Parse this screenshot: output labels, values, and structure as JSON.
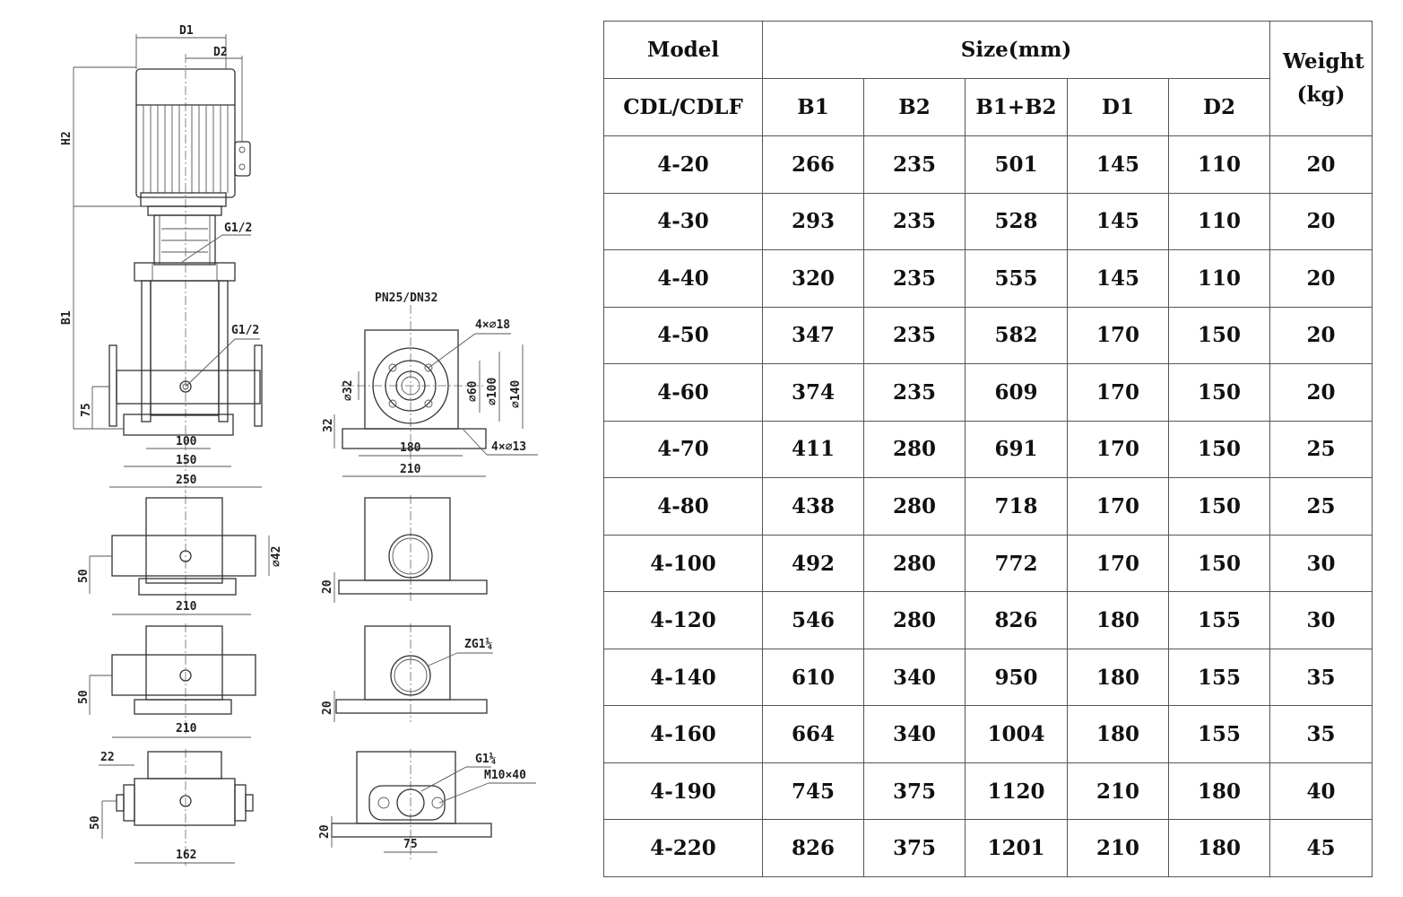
{
  "drawing": {
    "main_view": {
      "d1": "D1",
      "d2": "D2",
      "h2": "H2",
      "b1": "B1",
      "g_top": "G1/2",
      "g_mid": "G1/2",
      "dim_75": "75",
      "dim_100": "100",
      "dim_150": "150",
      "dim_250": "250"
    },
    "flange_view": {
      "title": "PN25/DN32",
      "holes_top": "4×⌀18",
      "d32": "⌀32",
      "d60": "⌀60",
      "d100": "⌀100",
      "d140": "⌀140",
      "dim_32": "32",
      "dim_180": "180",
      "dim_210": "210",
      "holes_base": "4×⌀13"
    },
    "variant1": {
      "dim_50": "50",
      "d42": "⌀42",
      "dim_210": "210",
      "dim_20": "20"
    },
    "variant2": {
      "dim_50": "50",
      "dim_210": "210",
      "dim_20": "20",
      "thread": "ZG1¼"
    },
    "variant3": {
      "dim_22": "22",
      "dim_50": "50",
      "dim_162": "162",
      "dim_20": "20",
      "thread": "G1¼",
      "bolt": "M10×40",
      "dim_75": "75"
    }
  },
  "table": {
    "header": {
      "model": "Model",
      "size": "Size(mm)",
      "weight": "Weight (kg)",
      "series": "CDL/CDLF",
      "cols": [
        "B1",
        "B2",
        "B1+B2",
        "D1",
        "D2"
      ]
    },
    "rows": [
      [
        "4-20",
        "266",
        "235",
        "501",
        "145",
        "110",
        "20"
      ],
      [
        "4-30",
        "293",
        "235",
        "528",
        "145",
        "110",
        "20"
      ],
      [
        "4-40",
        "320",
        "235",
        "555",
        "145",
        "110",
        "20"
      ],
      [
        "4-50",
        "347",
        "235",
        "582",
        "170",
        "150",
        "20"
      ],
      [
        "4-60",
        "374",
        "235",
        "609",
        "170",
        "150",
        "20"
      ],
      [
        "4-70",
        "411",
        "280",
        "691",
        "170",
        "150",
        "25"
      ],
      [
        "4-80",
        "438",
        "280",
        "718",
        "170",
        "150",
        "25"
      ],
      [
        "4-100",
        "492",
        "280",
        "772",
        "170",
        "150",
        "30"
      ],
      [
        "4-120",
        "546",
        "280",
        "826",
        "180",
        "155",
        "30"
      ],
      [
        "4-140",
        "610",
        "340",
        "950",
        "180",
        "155",
        "35"
      ],
      [
        "4-160",
        "664",
        "340",
        "1004",
        "180",
        "155",
        "35"
      ],
      [
        "4-190",
        "745",
        "375",
        "1120",
        "210",
        "180",
        "40"
      ],
      [
        "4-220",
        "826",
        "375",
        "1201",
        "210",
        "180",
        "45"
      ]
    ]
  }
}
